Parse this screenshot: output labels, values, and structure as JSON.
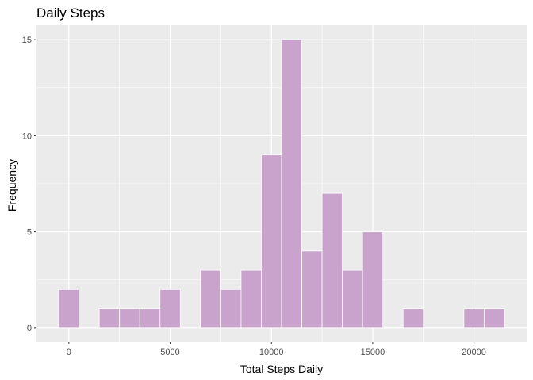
{
  "chart_data": {
    "type": "bar",
    "title": "Daily Steps",
    "xlabel": "Total Steps Daily",
    "ylabel": "Frequency",
    "bin_width": 1000,
    "bins": [
      {
        "center": 0,
        "count": 2
      },
      {
        "center": 1000,
        "count": 0
      },
      {
        "center": 2000,
        "count": 1
      },
      {
        "center": 3000,
        "count": 1
      },
      {
        "center": 4000,
        "count": 1
      },
      {
        "center": 5000,
        "count": 2
      },
      {
        "center": 6000,
        "count": 0
      },
      {
        "center": 7000,
        "count": 3
      },
      {
        "center": 8000,
        "count": 2
      },
      {
        "center": 9000,
        "count": 3
      },
      {
        "center": 10000,
        "count": 9
      },
      {
        "center": 11000,
        "count": 15
      },
      {
        "center": 12000,
        "count": 4
      },
      {
        "center": 13000,
        "count": 7
      },
      {
        "center": 14000,
        "count": 3
      },
      {
        "center": 15000,
        "count": 5
      },
      {
        "center": 16000,
        "count": 0
      },
      {
        "center": 17000,
        "count": 1
      },
      {
        "center": 18000,
        "count": 0
      },
      {
        "center": 19000,
        "count": 0
      },
      {
        "center": 20000,
        "count": 1
      },
      {
        "center": 21000,
        "count": 1
      }
    ],
    "x_ticks": [
      0,
      5000,
      10000,
      15000,
      20000
    ],
    "x_tick_labels": [
      "0",
      "5000",
      "10000",
      "15000",
      "20000"
    ],
    "y_ticks": [
      0,
      5,
      10,
      15
    ],
    "y_tick_labels": [
      "0",
      "5",
      "10",
      "15"
    ],
    "xlim": [
      -1600,
      22600
    ],
    "ylim": [
      -0.75,
      15.75
    ],
    "grid": true,
    "colors": {
      "bar_fill": "#c9a3cb",
      "bar_outline": "#ffffff",
      "panel_background": "#ebebeb",
      "grid_major": "#ffffff",
      "text": "#000000",
      "tick_text": "#4d4d4d",
      "tick_mark": "#333333"
    }
  }
}
